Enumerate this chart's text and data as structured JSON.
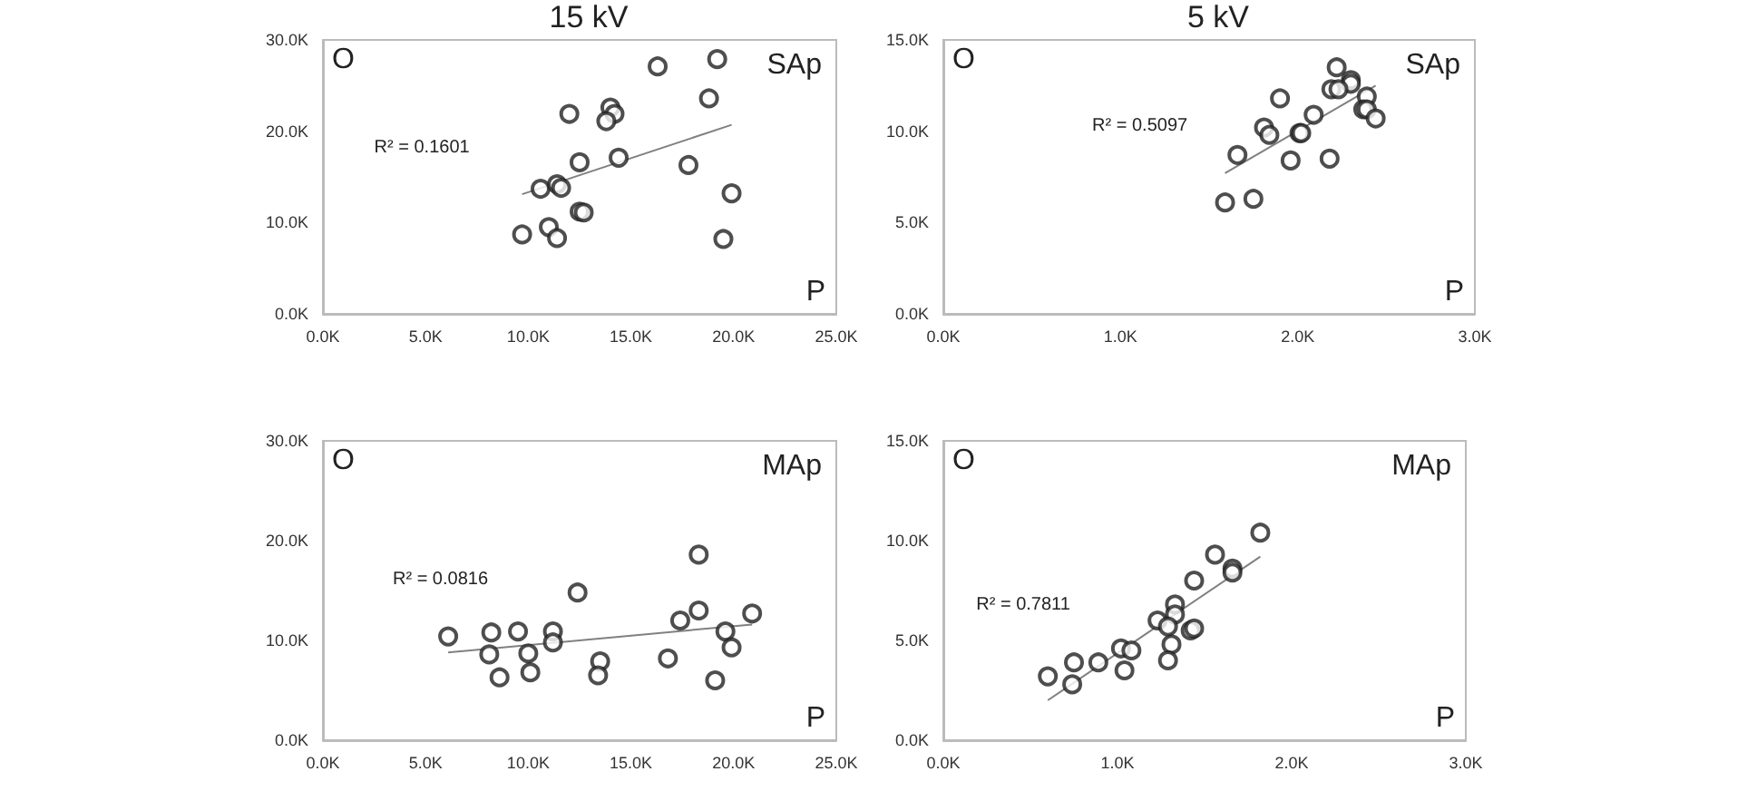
{
  "chart_data": [
    {
      "type": "scatter",
      "title": "15 kV",
      "xlabel": "P",
      "ylabel": "O",
      "grid": false,
      "xlim": [
        0,
        25
      ],
      "xticks": [
        {
          "value": 0,
          "label": "0.0K"
        },
        {
          "value": 5,
          "label": "5.0K"
        },
        {
          "value": 10,
          "label": "10.0K"
        },
        {
          "value": 15,
          "label": "15.0K"
        },
        {
          "value": 20,
          "label": "20.0K"
        },
        {
          "value": 25,
          "label": "25.0K"
        }
      ],
      "ylim": [
        0,
        30
      ],
      "yticks": [
        {
          "value": 0,
          "label": "0.0K"
        },
        {
          "value": 10,
          "label": "10.0K"
        },
        {
          "value": 20,
          "label": "20.0K"
        },
        {
          "value": 30,
          "label": "30.0K"
        }
      ],
      "annotations": [
        "SAp",
        "R² = 0.1601"
      ],
      "series": [
        {
          "type": "scatter",
          "marker": "circle",
          "color": "#222222",
          "x": [
            16.3,
            19.2,
            18.8,
            14.0,
            14.2,
            13.8,
            12.0,
            14.4,
            12.5,
            17.8,
            10.6,
            11.4,
            11.6,
            19.9,
            12.5,
            12.7,
            11.0,
            9.7,
            11.4,
            19.5
          ],
          "values": [
            27.1,
            27.9,
            23.6,
            22.6,
            21.9,
            21.1,
            21.9,
            17.1,
            16.6,
            16.3,
            13.7,
            14.2,
            13.8,
            13.2,
            11.2,
            11.1,
            9.5,
            8.7,
            8.3,
            8.2
          ]
        },
        {
          "type": "line",
          "color": "#808080",
          "x": [
            9.7,
            19.9
          ],
          "values": [
            13.1,
            20.7
          ]
        }
      ]
    },
    {
      "type": "scatter",
      "title": "5 kV",
      "xlabel": "P",
      "ylabel": "O",
      "grid": false,
      "xlim": [
        0,
        3
      ],
      "xticks": [
        {
          "value": 0,
          "label": "0.0K"
        },
        {
          "value": 1,
          "label": "1.0K"
        },
        {
          "value": 2,
          "label": "2.0K"
        },
        {
          "value": 3,
          "label": "3.0K"
        }
      ],
      "ylim": [
        0,
        15
      ],
      "yticks": [
        {
          "value": 0,
          "label": "0.0K"
        },
        {
          "value": 5,
          "label": "5.0K"
        },
        {
          "value": 10,
          "label": "10.0K"
        },
        {
          "value": 15,
          "label": "15.0K"
        }
      ],
      "annotations": [
        "SAp",
        "R² = 0.5097"
      ],
      "series": [
        {
          "type": "scatter",
          "marker": "circle",
          "color": "#222222",
          "x": [
            2.22,
            2.3,
            2.3,
            2.19,
            2.23,
            1.9,
            2.39,
            2.37,
            2.39,
            2.44,
            2.09,
            1.81,
            1.84,
            2.01,
            2.02,
            1.66,
            1.96,
            2.18,
            1.59,
            1.75
          ],
          "values": [
            13.5,
            12.8,
            12.6,
            12.3,
            12.3,
            11.8,
            11.9,
            11.2,
            11.2,
            10.7,
            10.9,
            10.2,
            9.8,
            9.9,
            9.9,
            8.7,
            8.4,
            8.5,
            6.1,
            6.3
          ]
        },
        {
          "type": "line",
          "color": "#808080",
          "x": [
            1.59,
            2.44
          ],
          "values": [
            7.7,
            12.5
          ]
        }
      ]
    },
    {
      "type": "scatter",
      "xlabel": "P",
      "ylabel": "O",
      "grid": false,
      "xlim": [
        0,
        25
      ],
      "xticks": [
        {
          "value": 0,
          "label": "0.0K"
        },
        {
          "value": 5,
          "label": "5.0K"
        },
        {
          "value": 10,
          "label": "10.0K"
        },
        {
          "value": 15,
          "label": "15.0K"
        },
        {
          "value": 20,
          "label": "20.0K"
        },
        {
          "value": 25,
          "label": "25.0K"
        }
      ],
      "ylim": [
        0,
        30
      ],
      "yticks": [
        {
          "value": 0,
          "label": "0.0K"
        },
        {
          "value": 10,
          "label": "10.0K"
        },
        {
          "value": 20,
          "label": "20.0K"
        },
        {
          "value": 30,
          "label": "30.0K"
        }
      ],
      "annotations": [
        "MAp",
        "R² = 0.0816"
      ],
      "series": [
        {
          "type": "scatter",
          "marker": "circle",
          "color": "#222222",
          "x": [
            18.3,
            12.4,
            18.3,
            20.9,
            17.4,
            6.1,
            8.2,
            9.5,
            11.2,
            11.2,
            19.6,
            19.9,
            8.1,
            10.0,
            13.5,
            16.8,
            8.6,
            10.1,
            13.4,
            19.1
          ],
          "values": [
            18.6,
            14.8,
            13.0,
            12.7,
            12.0,
            10.4,
            10.8,
            10.9,
            10.9,
            9.8,
            10.9,
            9.3,
            8.6,
            8.7,
            7.9,
            8.2,
            6.3,
            6.8,
            6.5,
            6.0
          ]
        },
        {
          "type": "line",
          "color": "#808080",
          "x": [
            6.1,
            20.9
          ],
          "values": [
            8.8,
            11.6
          ]
        }
      ]
    },
    {
      "type": "scatter",
      "xlabel": "P",
      "ylabel": "O",
      "grid": false,
      "xlim": [
        0,
        3
      ],
      "xticks": [
        {
          "value": 0,
          "label": "0.0K"
        },
        {
          "value": 1,
          "label": "1.0K"
        },
        {
          "value": 2,
          "label": "2.0K"
        },
        {
          "value": 3,
          "label": "3.0K"
        }
      ],
      "ylim": [
        0,
        15
      ],
      "yticks": [
        {
          "value": 0,
          "label": "0.0K"
        },
        {
          "value": 5,
          "label": "5.0K"
        },
        {
          "value": 10,
          "label": "10.0K"
        },
        {
          "value": 15,
          "label": "15.0K"
        }
      ],
      "annotations": [
        "MAp",
        "R² = 0.7811"
      ],
      "series": [
        {
          "type": "scatter",
          "marker": "circle",
          "color": "#222222",
          "x": [
            1.82,
            1.56,
            1.66,
            1.66,
            1.44,
            1.33,
            1.33,
            1.23,
            1.29,
            1.42,
            1.44,
            1.31,
            1.29,
            1.02,
            1.08,
            1.04,
            0.89,
            0.75,
            0.74,
            0.6
          ],
          "values": [
            10.4,
            9.3,
            8.6,
            8.4,
            8.0,
            6.8,
            6.3,
            6.0,
            5.7,
            5.5,
            5.6,
            4.8,
            4.0,
            4.6,
            4.5,
            3.5,
            3.9,
            3.9,
            2.8,
            3.2
          ]
        },
        {
          "type": "line",
          "color": "#808080",
          "x": [
            0.6,
            1.82
          ],
          "values": [
            2.0,
            9.2
          ]
        }
      ]
    }
  ]
}
